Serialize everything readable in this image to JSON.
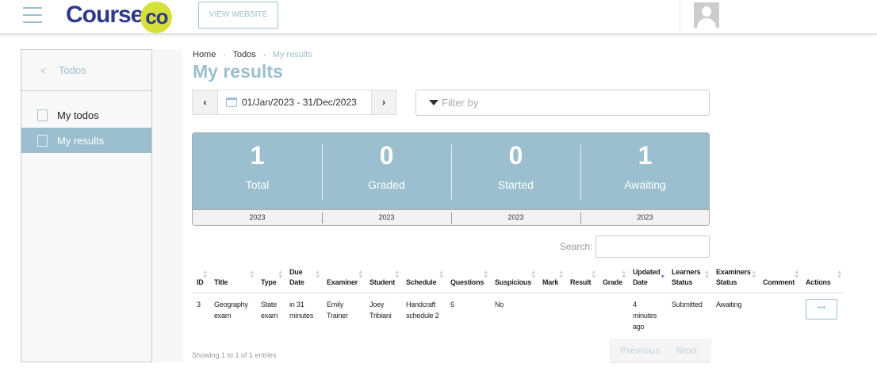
{
  "header": {
    "logo_text": "Course",
    "logo_badge": "co",
    "view_website": "VIEW WEBSITE"
  },
  "sidebar": {
    "back_label": "Todos",
    "items": [
      {
        "label": "My todos",
        "icon": "todos-icon",
        "active": false
      },
      {
        "label": "My results",
        "icon": "results-icon",
        "active": true
      }
    ]
  },
  "breadcrumb": [
    "Home",
    "Todos",
    "My results"
  ],
  "page_title": "My results",
  "date_range": {
    "value": "01/Jan/2023 - 31/Dec/2023",
    "prev": "‹",
    "next": "›"
  },
  "filter": {
    "placeholder": "Filter by"
  },
  "stats": [
    {
      "value": "1",
      "label": "Total",
      "year": "2023"
    },
    {
      "value": "0",
      "label": "Graded",
      "year": "2023"
    },
    {
      "value": "0",
      "label": "Started",
      "year": "2023"
    },
    {
      "value": "1",
      "label": "Awaiting",
      "year": "2023"
    }
  ],
  "search": {
    "label": "Search:",
    "value": ""
  },
  "table": {
    "columns": [
      "ID",
      "Title",
      "Type",
      "Due Date",
      "Examiner",
      "Student",
      "Schedule",
      "Questions",
      "Suspicious",
      "Mark",
      "Result",
      "Grade",
      "Updated Date",
      "Learners Status",
      "Examiners Status",
      "Comment",
      "Actions"
    ],
    "sorted_column": "Updated Date",
    "rows": [
      [
        "3",
        "Geography exam",
        "State exam",
        "in 31 minutes",
        "Emily Trainer",
        "Joey Tribiani",
        "Handcraft schedule 2",
        "6",
        "No",
        "",
        "",
        "",
        "4 minutes ago",
        "Submitted",
        "Awaiting",
        "",
        "•••"
      ]
    ]
  },
  "footer": {
    "showing": "Showing 1 to 1 of 1 entries",
    "previous": "Previous",
    "next": "Next"
  },
  "colors": {
    "accent": "#9bbfcf",
    "logo": "#2e3a87",
    "logo_badge": "#d6e03a"
  }
}
